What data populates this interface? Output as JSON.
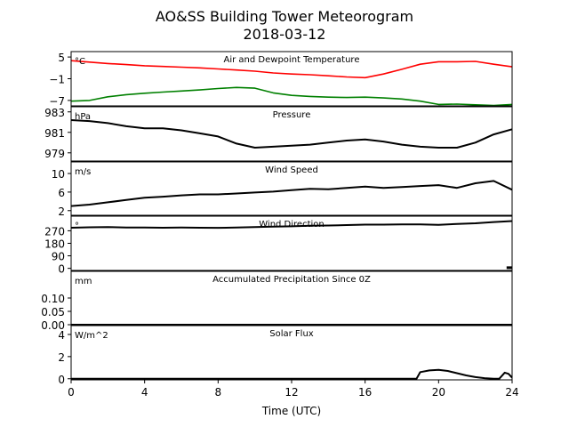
{
  "title": "AO&SS Building Tower Meteorogram",
  "subtitle": "2018-03-12",
  "xlabel": "Time (UTC)",
  "x_ticks": [
    "0",
    "4",
    "8",
    "12",
    "16",
    "20",
    "24"
  ],
  "colors": {
    "temperature": "#ff0000",
    "dewpoint": "#008000",
    "other": "#000000"
  },
  "chart_data": [
    {
      "type": "line",
      "panel": "temperature",
      "title": "Air and Dewpoint Temperature",
      "unit": "°C",
      "yticks": [
        5,
        -1,
        -7
      ],
      "ylim": [
        -8.5,
        6.5
      ],
      "x": [
        0,
        1,
        2,
        3,
        4,
        5,
        6,
        7,
        8,
        9,
        10,
        11,
        12,
        13,
        14,
        15,
        16,
        17,
        18,
        19,
        20,
        21,
        22,
        23,
        24
      ],
      "series": [
        {
          "name": "",
          "color": "temperature",
          "values": [
            4.0,
            3.6,
            3.2,
            2.9,
            2.6,
            2.4,
            2.2,
            2.0,
            1.7,
            1.4,
            1.1,
            0.6,
            0.3,
            0.1,
            -0.2,
            -0.5,
            -0.7,
            0.3,
            1.6,
            3.0,
            3.7,
            3.7,
            3.8,
            3.0,
            2.3
          ]
        },
        {
          "name": "",
          "color": "dewpoint",
          "values": [
            -7.2,
            -7.0,
            -6.0,
            -5.4,
            -5.0,
            -4.7,
            -4.4,
            -4.1,
            -3.7,
            -3.4,
            -3.6,
            -4.9,
            -5.6,
            -5.9,
            -6.1,
            -6.2,
            -6.1,
            -6.3,
            -6.6,
            -7.2,
            -8.1,
            -8.0,
            -8.2,
            -8.4,
            -8.1
          ]
        }
      ]
    },
    {
      "type": "line",
      "panel": "pressure",
      "title": "Pressure",
      "unit": "hPa",
      "yticks": [
        983,
        981,
        979
      ],
      "ylim": [
        978.2,
        983.5
      ],
      "x": [
        0,
        1,
        2,
        3,
        4,
        5,
        6,
        7,
        8,
        9,
        10,
        11,
        12,
        13,
        14,
        15,
        16,
        17,
        18,
        19,
        20,
        21,
        22,
        23,
        24
      ],
      "series": [
        {
          "name": "",
          "color": "other",
          "values": [
            982.2,
            982.1,
            981.9,
            981.6,
            981.4,
            981.4,
            981.2,
            980.9,
            980.6,
            979.9,
            979.5,
            979.6,
            979.7,
            979.8,
            980.0,
            980.2,
            980.3,
            980.1,
            979.8,
            979.6,
            979.5,
            979.5,
            980.0,
            980.8,
            981.3
          ]
        }
      ]
    },
    {
      "type": "line",
      "panel": "wind_speed",
      "title": "Wind Speed",
      "unit": "m/s",
      "yticks": [
        10,
        6,
        2
      ],
      "ylim": [
        1.0,
        12.5
      ],
      "x": [
        0,
        1,
        2,
        3,
        4,
        5,
        6,
        7,
        8,
        9,
        10,
        11,
        12,
        13,
        14,
        15,
        16,
        17,
        18,
        19,
        20,
        21,
        22,
        23,
        24
      ],
      "series": [
        {
          "name": "",
          "color": "other",
          "values": [
            3.0,
            3.3,
            3.8,
            4.3,
            4.8,
            5.0,
            5.3,
            5.5,
            5.5,
            5.7,
            5.9,
            6.1,
            6.4,
            6.7,
            6.6,
            6.9,
            7.2,
            6.9,
            7.1,
            7.3,
            7.5,
            6.9,
            7.9,
            8.4,
            6.5
          ]
        }
      ]
    },
    {
      "type": "line",
      "panel": "wind_direction",
      "title": "Wind Direction",
      "unit": "°",
      "yticks": [
        270,
        180,
        90,
        0
      ],
      "ylim": [
        -15,
        375
      ],
      "x": [
        0,
        1,
        2,
        3,
        4,
        5,
        6,
        7,
        8,
        9,
        10,
        11,
        12,
        13,
        14,
        15,
        16,
        17,
        18,
        19,
        20,
        21,
        22,
        23,
        24
      ],
      "series": [
        {
          "name": "",
          "color": "other",
          "values": [
            292,
            295,
            297,
            294,
            293,
            292,
            293,
            292,
            291,
            293,
            297,
            300,
            302,
            306,
            308,
            311,
            314,
            314,
            316,
            316,
            313,
            319,
            324,
            333,
            340
          ]
        }
      ],
      "extra_segment": {
        "x": [
          23.7,
          24.0
        ],
        "values": [
          5,
          5
        ]
      }
    },
    {
      "type": "line",
      "panel": "precipitation",
      "title": "Accumulated Precipitation Since 0Z",
      "unit": "mm",
      "yticks": [
        0.1,
        0.05,
        0.0
      ],
      "ytick_labels": [
        "0.10",
        "0.05",
        "0.00"
      ],
      "ylim": [
        0.0,
        0.2
      ],
      "x": [
        0,
        24
      ],
      "series": [
        {
          "name": "",
          "color": "other",
          "values": [
            0.0,
            0.0
          ]
        }
      ]
    },
    {
      "type": "line",
      "panel": "solar",
      "title": "Solar Flux",
      "unit": "W/m^2",
      "yticks": [
        4,
        2,
        0
      ],
      "ylim": [
        -0.1,
        4.8
      ],
      "x": [
        0,
        18.8,
        19.0,
        19.5,
        20.0,
        20.5,
        21.0,
        21.5,
        22.0,
        22.5,
        23.0,
        23.3,
        23.6,
        23.8,
        24.0
      ],
      "series": [
        {
          "name": "",
          "color": "other",
          "values": [
            0.0,
            0.0,
            0.6,
            0.75,
            0.8,
            0.7,
            0.5,
            0.3,
            0.15,
            0.05,
            0.0,
            0.0,
            0.55,
            0.45,
            0.1
          ]
        }
      ]
    }
  ]
}
